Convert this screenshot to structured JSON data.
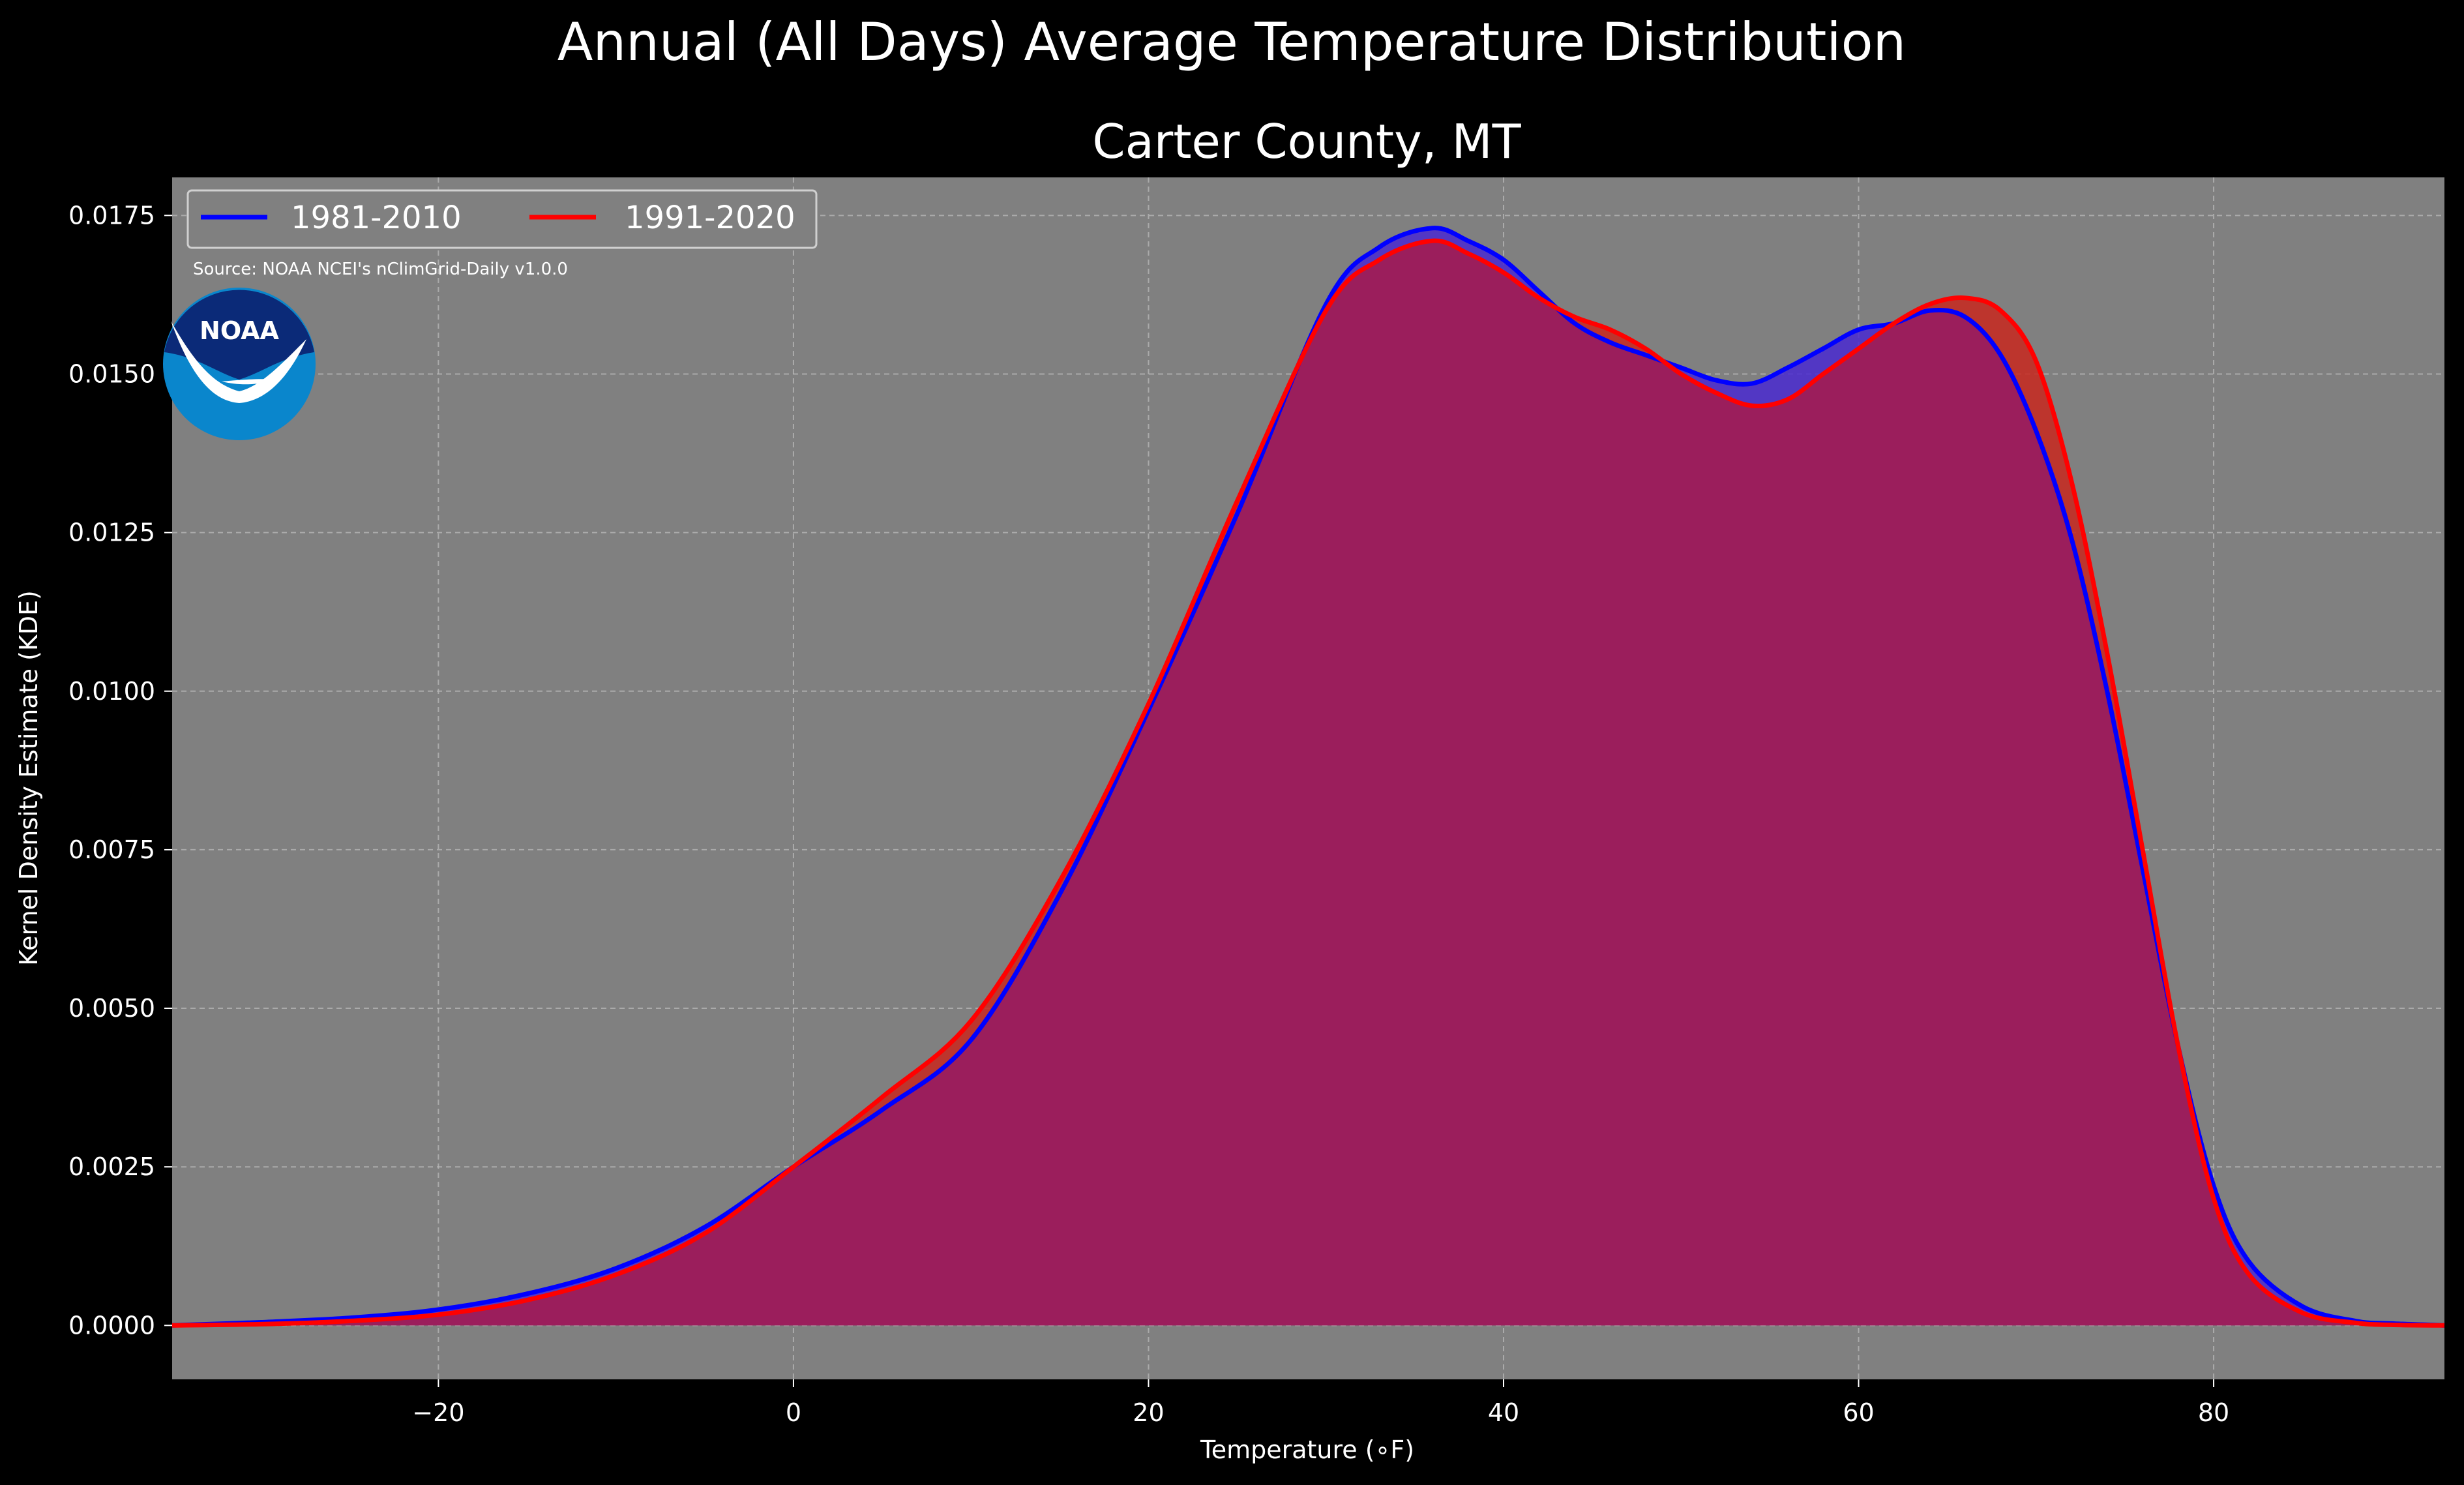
{
  "chart_data": {
    "type": "area",
    "title": "Annual (All Days) Average Temperature Distribution",
    "subtitle": "Carter County, MT",
    "xlabel": "Temperature (∘F)",
    "ylabel": "Kernel Density Estimate (KDE)",
    "xlim": [
      -35,
      93
    ],
    "ylim": [
      -0.00085,
      0.0181
    ],
    "xticks": [
      -20,
      0,
      20,
      40,
      60,
      80
    ],
    "xtick_labels": [
      "−20",
      "0",
      "20",
      "40",
      "60",
      "80"
    ],
    "yticks": [
      0,
      0.0025,
      0.005,
      0.0075,
      0.01,
      0.0125,
      0.015,
      0.0175
    ],
    "ytick_labels": [
      "0.0000",
      "0.0025",
      "0.0050",
      "0.0075",
      "0.0100",
      "0.0125",
      "0.0150",
      "0.0175"
    ],
    "grid": true,
    "legend_position": "top-left",
    "source_note": "Source: NOAA NCEI's nClimGrid-Daily v1.0.0",
    "logo_text": "NOAA",
    "colors": {
      "background": "#000000",
      "plot_background": "#808080",
      "series_1": "#0000ff",
      "series_2": "#ff0000",
      "overlap_fill": "#9b1e5c"
    },
    "x": [
      -35,
      -30,
      -25,
      -20,
      -15,
      -10,
      -5,
      0,
      5,
      10,
      15,
      20,
      25,
      30,
      33,
      36,
      38,
      40,
      42,
      44,
      46,
      48,
      50,
      52,
      54,
      56,
      58,
      60,
      62,
      64,
      66,
      68,
      70,
      72,
      74,
      76,
      78,
      80,
      82,
      85,
      88,
      90,
      93
    ],
    "series": [
      {
        "name": "1981-2010",
        "values": [
          0.0,
          5e-05,
          0.00012,
          0.00025,
          0.0005,
          0.0009,
          0.00155,
          0.0025,
          0.0034,
          0.0045,
          0.0068,
          0.0097,
          0.0128,
          0.0161,
          0.017,
          0.0173,
          0.0171,
          0.0168,
          0.0163,
          0.0158,
          0.0155,
          0.0153,
          0.0151,
          0.0149,
          0.01485,
          0.0151,
          0.0154,
          0.0157,
          0.0158,
          0.016,
          0.0159,
          0.0153,
          0.0141,
          0.0124,
          0.01,
          0.0072,
          0.0044,
          0.0022,
          0.001,
          0.0003,
          7e-05,
          3e-05,
          0.0
        ]
      },
      {
        "name": "1991-2020",
        "values": [
          0.0,
          2e-05,
          7e-05,
          0.00017,
          0.0004,
          0.0008,
          0.00145,
          0.0025,
          0.0036,
          0.0048,
          0.007,
          0.0098,
          0.013,
          0.016,
          0.0168,
          0.0171,
          0.0169,
          0.0166,
          0.0162,
          0.0159,
          0.0157,
          0.0154,
          0.015,
          0.0147,
          0.0145,
          0.0146,
          0.015,
          0.0154,
          0.0158,
          0.0161,
          0.0162,
          0.016,
          0.0152,
          0.0133,
          0.0106,
          0.0075,
          0.0044,
          0.002,
          0.0008,
          0.0002,
          4e-05,
          1e-05,
          0.0
        ]
      }
    ]
  }
}
